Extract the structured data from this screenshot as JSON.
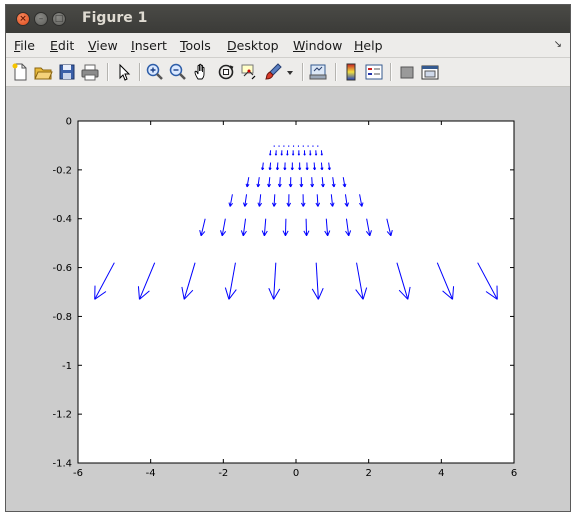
{
  "window": {
    "title": "Figure 1",
    "controls": [
      "close-icon",
      "minimize-icon",
      "maximize-icon"
    ]
  },
  "menubar": {
    "items": [
      {
        "label": "File",
        "mnemonic": "F",
        "rest": "ile"
      },
      {
        "label": "Edit",
        "mnemonic": "E",
        "rest": "dit"
      },
      {
        "label": "View",
        "mnemonic": "V",
        "rest": "iew"
      },
      {
        "label": "Insert",
        "mnemonic": "I",
        "rest": "nsert"
      },
      {
        "label": "Tools",
        "mnemonic": "T",
        "rest": "ools"
      },
      {
        "label": "Desktop",
        "mnemonic": "D",
        "rest": "esktop"
      },
      {
        "label": "Window",
        "mnemonic": "W",
        "rest": "indow"
      },
      {
        "label": "Help",
        "mnemonic": "H",
        "rest": "elp"
      }
    ],
    "corner_icon": "dock-arrow-icon"
  },
  "toolbar": {
    "tools": [
      "new-figure-icon",
      "open-file-icon",
      "save-icon",
      "print-icon",
      "edit-plot-icon",
      "zoom-in-icon",
      "zoom-out-icon",
      "pan-icon",
      "rotate-3d-icon",
      "data-cursor-icon",
      "brush-icon",
      "link-plot-icon",
      "colorbar-icon",
      "legend-icon",
      "hide-plot-tools-icon",
      "show-plot-tools-icon"
    ]
  },
  "chart_data": {
    "type": "quiver",
    "xlim": [
      -6,
      6
    ],
    "ylim": [
      -1.4,
      0
    ],
    "xticks": [
      -6,
      -4,
      -2,
      0,
      2,
      4,
      6
    ],
    "xtick_labels": [
      "-6",
      "-4",
      "-2",
      "0",
      "2",
      "4",
      "6"
    ],
    "yticks": [
      0,
      -0.2,
      -0.4,
      -0.6,
      -0.8,
      -1,
      -1.2,
      -1.4
    ],
    "ytick_labels": [
      "0",
      "-0.2",
      "-0.4",
      "-0.6",
      "-0.8",
      "-1",
      "-1.2",
      "-1.4"
    ],
    "grid": false,
    "arrow_color": "#0000ff",
    "rows": [
      {
        "y": -0.1,
        "x_start": -0.6,
        "x_end": 0.6,
        "count": 10,
        "dy": 0.0,
        "dx_scale": 0.0
      },
      {
        "y": -0.12,
        "x_start": -0.7,
        "x_end": 0.7,
        "count": 10,
        "dy": 0.02,
        "dx_scale": 0.02
      },
      {
        "y": -0.17,
        "x_start": -0.9,
        "x_end": 0.9,
        "count": 10,
        "dy": 0.03,
        "dx_scale": 0.03
      },
      {
        "y": -0.23,
        "x_start": -1.3,
        "x_end": 1.3,
        "count": 10,
        "dy": 0.04,
        "dx_scale": 0.04
      },
      {
        "y": -0.3,
        "x_start": -1.75,
        "x_end": 1.75,
        "count": 10,
        "dy": 0.05,
        "dx_scale": 0.04
      },
      {
        "y": -0.4,
        "x_start": -2.5,
        "x_end": 2.5,
        "count": 10,
        "dy": 0.07,
        "dx_scale": 0.05
      },
      {
        "y": -0.58,
        "x_start": -5.0,
        "x_end": 5.0,
        "count": 10,
        "dy": 0.15,
        "dx_scale": 0.12
      }
    ]
  }
}
